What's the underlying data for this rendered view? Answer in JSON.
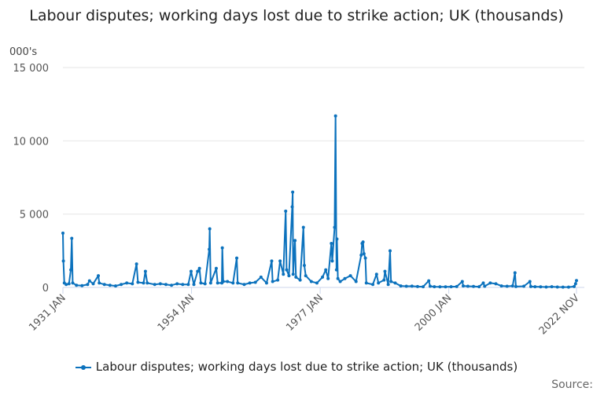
{
  "chart_data": {
    "type": "line",
    "title": "Labour disputes; working days lost due to strike action; UK (thousands)",
    "ylabel": "000's",
    "xlabel": "",
    "ylim": [
      0,
      15000
    ],
    "yticks": [
      0,
      5000,
      10000,
      15000
    ],
    "ytick_labels": [
      "0",
      "5 000",
      "10 000",
      "15 000"
    ],
    "xlim": [
      "1931-01",
      "2022-11"
    ],
    "xticks": [
      "1931-01",
      "1954-01",
      "1977-01",
      "2000-01",
      "2022-11"
    ],
    "xtick_labels": [
      "1931 JAN",
      "1954 JAN",
      "1977 JAN",
      "2000 JAN",
      "2022 NOV"
    ],
    "grid": "horizontal",
    "legend": "bottom",
    "color": "#0c72bd",
    "series": [
      {
        "name": "Labour disputes; working days lost due to strike action; UK (thousands)",
        "values": [
          [
            "1931-01",
            3700
          ],
          [
            "1931-02",
            1800
          ],
          [
            "1931-04",
            300
          ],
          [
            "1931-08",
            200
          ],
          [
            "1932-02",
            250
          ],
          [
            "1932-06",
            1200
          ],
          [
            "1932-08",
            3350
          ],
          [
            "1932-10",
            300
          ],
          [
            "1933-06",
            150
          ],
          [
            "1934-06",
            120
          ],
          [
            "1935-06",
            200
          ],
          [
            "1935-10",
            450
          ],
          [
            "1936-06",
            250
          ],
          [
            "1937-05",
            800
          ],
          [
            "1937-07",
            300
          ],
          [
            "1938-06",
            200
          ],
          [
            "1939-06",
            150
          ],
          [
            "1940-06",
            100
          ],
          [
            "1941-06",
            200
          ],
          [
            "1942-06",
            300
          ],
          [
            "1943-06",
            250
          ],
          [
            "1944-03",
            1600
          ],
          [
            "1944-06",
            350
          ],
          [
            "1945-06",
            300
          ],
          [
            "1945-10",
            1100
          ],
          [
            "1946-02",
            300
          ],
          [
            "1947-06",
            200
          ],
          [
            "1948-06",
            250
          ],
          [
            "1949-06",
            200
          ],
          [
            "1950-06",
            150
          ],
          [
            "1951-06",
            250
          ],
          [
            "1952-06",
            200
          ],
          [
            "1953-06",
            200
          ],
          [
            "1953-12",
            1100
          ],
          [
            "1954-06",
            200
          ],
          [
            "1955-02",
            1100
          ],
          [
            "1955-06",
            1300
          ],
          [
            "1955-09",
            300
          ],
          [
            "1956-06",
            250
          ],
          [
            "1957-03",
            2600
          ],
          [
            "1957-04",
            4000
          ],
          [
            "1957-06",
            300
          ],
          [
            "1958-06",
            1300
          ],
          [
            "1958-09",
            300
          ],
          [
            "1959-06",
            300
          ],
          [
            "1959-07",
            2700
          ],
          [
            "1959-09",
            400
          ],
          [
            "1960-06",
            400
          ],
          [
            "1961-06",
            300
          ],
          [
            "1962-02",
            2000
          ],
          [
            "1962-04",
            300
          ],
          [
            "1963-06",
            200
          ],
          [
            "1964-06",
            300
          ],
          [
            "1965-06",
            350
          ],
          [
            "1966-06",
            700
          ],
          [
            "1967-06",
            300
          ],
          [
            "1968-05",
            1800
          ],
          [
            "1968-07",
            400
          ],
          [
            "1969-06",
            500
          ],
          [
            "1969-11",
            1800
          ],
          [
            "1970-06",
            900
          ],
          [
            "1970-11",
            5200
          ],
          [
            "1971-01",
            1200
          ],
          [
            "1971-06",
            800
          ],
          [
            "1972-01",
            5500
          ],
          [
            "1972-02",
            6500
          ],
          [
            "1972-03",
            900
          ],
          [
            "1972-07",
            3200
          ],
          [
            "1972-09",
            700
          ],
          [
            "1973-06",
            500
          ],
          [
            "1974-01",
            4100
          ],
          [
            "1974-03",
            1500
          ],
          [
            "1974-06",
            800
          ],
          [
            "1975-06",
            400
          ],
          [
            "1976-06",
            300
          ],
          [
            "1977-06",
            700
          ],
          [
            "1978-01",
            1200
          ],
          [
            "1978-06",
            600
          ],
          [
            "1979-01",
            3000
          ],
          [
            "1979-03",
            1800
          ],
          [
            "1979-08",
            4100
          ],
          [
            "1979-10",
            11700
          ],
          [
            "1979-12",
            1200
          ],
          [
            "1980-01",
            3300
          ],
          [
            "1980-03",
            600
          ],
          [
            "1980-08",
            400
          ],
          [
            "1981-06",
            600
          ],
          [
            "1982-06",
            800
          ],
          [
            "1983-06",
            400
          ],
          [
            "1984-05",
            2200
          ],
          [
            "1984-07",
            3000
          ],
          [
            "1984-09",
            3100
          ],
          [
            "1984-11",
            2300
          ],
          [
            "1985-02",
            2000
          ],
          [
            "1985-04",
            300
          ],
          [
            "1986-06",
            200
          ],
          [
            "1987-02",
            900
          ],
          [
            "1987-06",
            300
          ],
          [
            "1988-06",
            500
          ],
          [
            "1988-08",
            1100
          ],
          [
            "1989-03",
            200
          ],
          [
            "1989-07",
            2500
          ],
          [
            "1989-09",
            400
          ],
          [
            "1990-06",
            300
          ],
          [
            "1991-06",
            100
          ],
          [
            "1992-06",
            80
          ],
          [
            "1993-06",
            90
          ],
          [
            "1994-06",
            60
          ],
          [
            "1995-06",
            50
          ],
          [
            "1996-06",
            450
          ],
          [
            "1996-09",
            80
          ],
          [
            "1997-06",
            50
          ],
          [
            "1998-06",
            40
          ],
          [
            "1999-06",
            40
          ],
          [
            "2000-06",
            50
          ],
          [
            "2001-06",
            60
          ],
          [
            "2002-06",
            400
          ],
          [
            "2002-08",
            100
          ],
          [
            "2003-06",
            80
          ],
          [
            "2004-06",
            70
          ],
          [
            "2005-06",
            50
          ],
          [
            "2006-03",
            300
          ],
          [
            "2006-06",
            80
          ],
          [
            "2007-06",
            300
          ],
          [
            "2008-06",
            250
          ],
          [
            "2009-06",
            100
          ],
          [
            "2010-06",
            80
          ],
          [
            "2011-06",
            100
          ],
          [
            "2011-11",
            1000
          ],
          [
            "2012-01",
            60
          ],
          [
            "2013-06",
            80
          ],
          [
            "2014-07",
            400
          ],
          [
            "2014-09",
            60
          ],
          [
            "2015-06",
            50
          ],
          [
            "2016-06",
            40
          ],
          [
            "2017-06",
            30
          ],
          [
            "2018-06",
            50
          ],
          [
            "2019-06",
            30
          ],
          [
            "2020-06",
            20
          ],
          [
            "2021-06",
            20
          ],
          [
            "2022-06",
            60
          ],
          [
            "2022-09",
            250
          ],
          [
            "2022-11",
            470
          ]
        ]
      }
    ]
  },
  "source_label": "Source:"
}
